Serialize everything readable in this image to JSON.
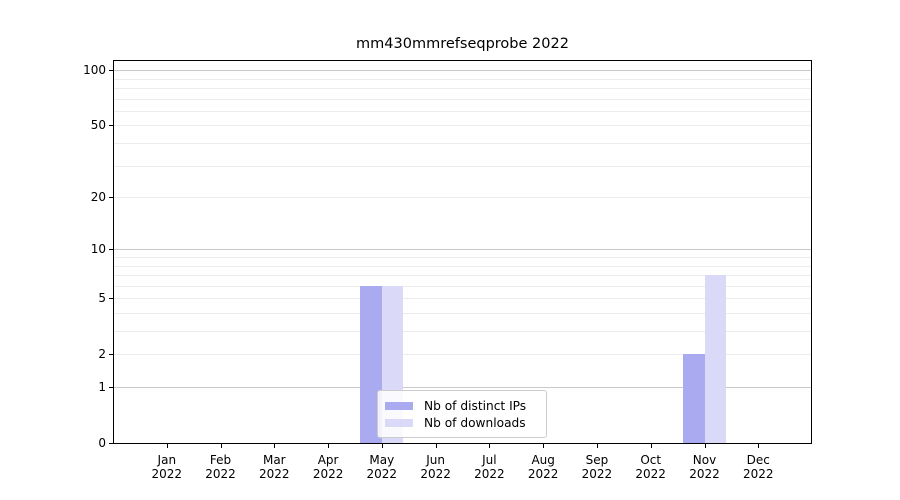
{
  "chart_data": {
    "type": "bar",
    "title": "mm430mmrefseqprobe 2022",
    "categories": [
      "Jan",
      "Feb",
      "Mar",
      "Apr",
      "May",
      "Jun",
      "Jul",
      "Aug",
      "Sep",
      "Oct",
      "Nov",
      "Dec"
    ],
    "x_year_label": "2022",
    "series": [
      {
        "name": "Nb of distinct IPs",
        "color": "#aaaaf0",
        "values": [
          0,
          0,
          0,
          0,
          6,
          0,
          0,
          0,
          0,
          0,
          2,
          0
        ]
      },
      {
        "name": "Nb of downloads",
        "color": "#dadaf8",
        "values": [
          0,
          0,
          0,
          0,
          6,
          0,
          0,
          0,
          0,
          0,
          7,
          0
        ]
      }
    ],
    "y_scale": "log10(1+y)",
    "y_tick_values": [
      0,
      1,
      2,
      5,
      10,
      20,
      50,
      100
    ],
    "y_tick_labels": [
      "0",
      "1",
      "2",
      "5",
      "10",
      "20",
      "50",
      "100"
    ],
    "y_major_gridlines": [
      1,
      10,
      100
    ],
    "y_minor_gridlines": [
      2,
      3,
      4,
      5,
      6,
      7,
      8,
      9,
      20,
      30,
      40,
      50,
      60,
      70,
      80,
      90
    ],
    "ylim": [
      0,
      112
    ],
    "grid": true,
    "legend_position": "lower center",
    "colors": {
      "major_grid": "#c9c9c9",
      "minor_grid": "#ececec",
      "axis": "#000000",
      "background": "#ffffff"
    }
  }
}
